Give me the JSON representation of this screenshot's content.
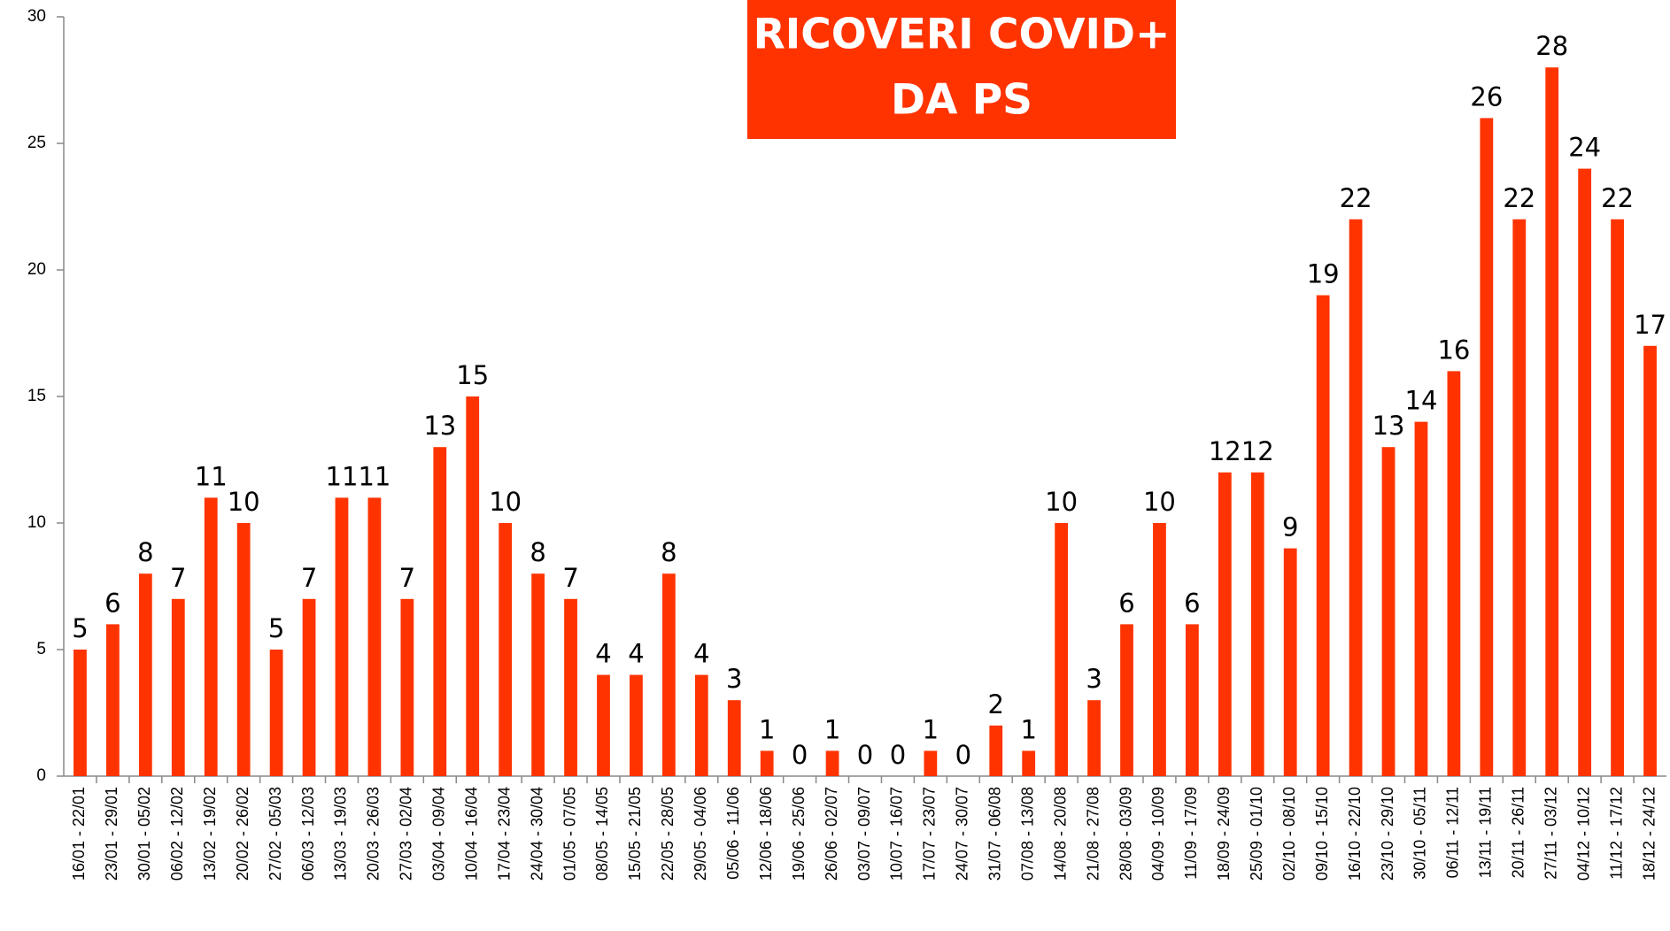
{
  "chart_data": {
    "type": "bar",
    "title": [
      "RICOVERI COVID+",
      "DA PS"
    ],
    "color": "#ff3300",
    "title_background": "#ff3300",
    "categories": [
      "16/01 - 22/01",
      "23/01 - 29/01",
      "30/01 - 05/02",
      "06/02 - 12/02",
      "13/02 - 19/02",
      "20/02 - 26/02",
      "27/02 - 05/03",
      "06/03 - 12/03",
      "13/03 - 19/03",
      "20/03 - 26/03",
      "27/03 - 02/04",
      "03/04 - 09/04",
      "10/04 - 16/04",
      "17/04 - 23/04",
      "24/04 - 30/04",
      "01/05 - 07/05",
      "08/05 - 14/05",
      "15/05 - 21/05",
      "22/05 - 28/05",
      "29/05 - 04/06",
      "05/06 - 11/06",
      "12/06 - 18/06",
      "19/06 - 25/06",
      "26/06 - 02/07",
      "03/07 - 09/07",
      "10/07 - 16/07",
      "17/07 - 23/07",
      "24/07 - 30/07",
      "31/07 - 06/08",
      "07/08 - 13/08",
      "14/08 - 20/08",
      "21/08 - 27/08",
      "28/08 - 03/09",
      "04/09 - 10/09",
      "11/09 - 17/09",
      "18/09 - 24/09",
      "25/09 - 01/10",
      "02/10 - 08/10",
      "09/10 - 15/10",
      "16/10 - 22/10",
      "23/10 - 29/10",
      "30/10 - 05/11",
      "06/11 - 12/11",
      "13/11 - 19/11",
      "20/11 - 26/11",
      "27/11 - 03/12",
      "04/12 - 10/12",
      "11/12 - 17/12",
      "18/12 - 24/12"
    ],
    "values": [
      5,
      6,
      8,
      7,
      11,
      10,
      5,
      7,
      11,
      11,
      7,
      13,
      15,
      10,
      8,
      7,
      4,
      4,
      8,
      4,
      3,
      1,
      0,
      1,
      0,
      0,
      1,
      0,
      2,
      1,
      10,
      3,
      6,
      10,
      6,
      12,
      12,
      9,
      19,
      22,
      13,
      14,
      16,
      26,
      22,
      28,
      24,
      22,
      17
    ],
    "ylim": [
      0,
      30
    ],
    "yticks": [
      0,
      5,
      10,
      15,
      20,
      25,
      30
    ],
    "grid": false
  }
}
